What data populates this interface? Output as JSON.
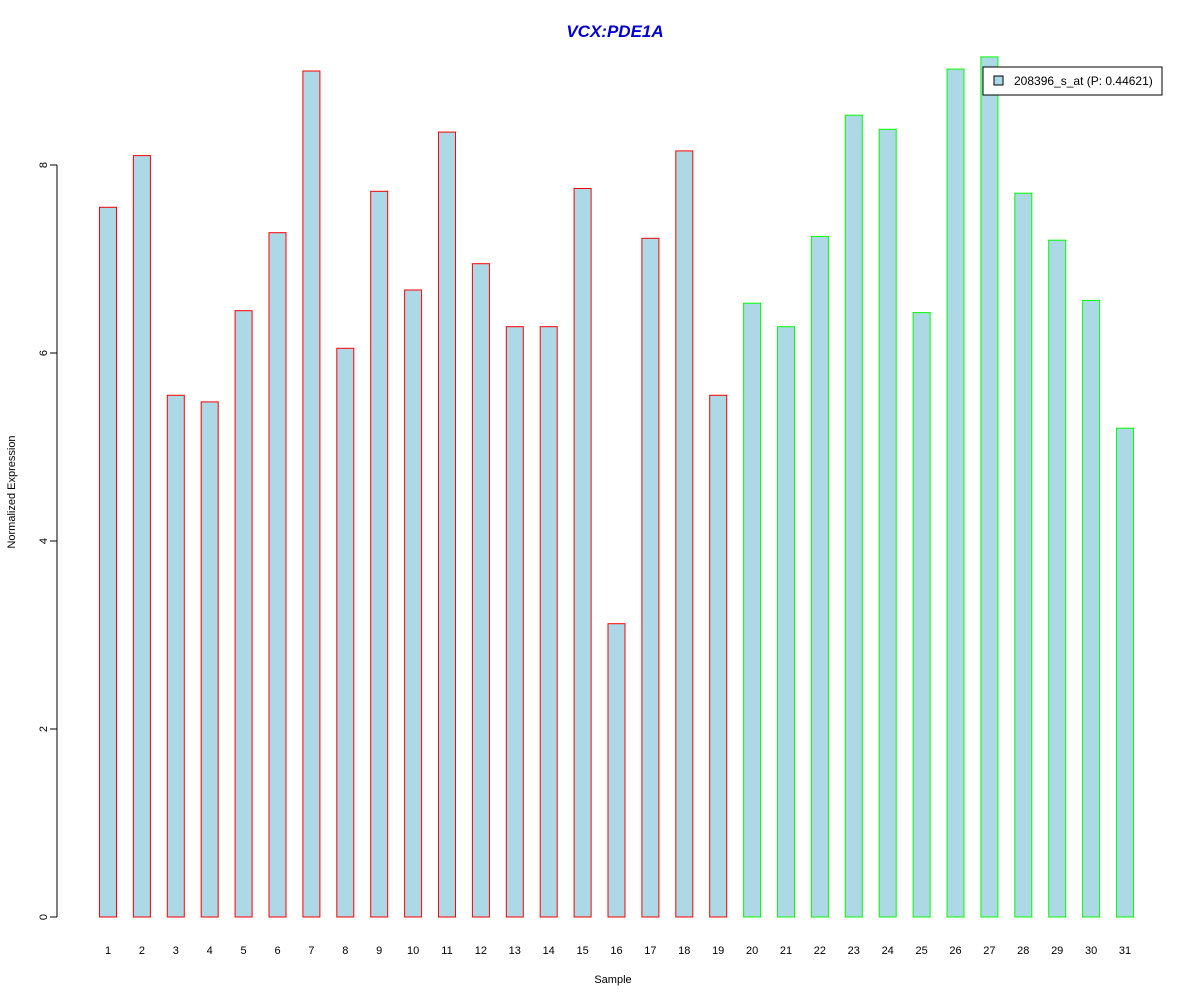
{
  "chart_data": {
    "type": "bar",
    "title": "VCX:PDE1A",
    "xlabel": "Sample",
    "ylabel": "Normalized Expression",
    "categories": [
      "1",
      "2",
      "3",
      "4",
      "5",
      "6",
      "7",
      "8",
      "9",
      "10",
      "11",
      "12",
      "13",
      "14",
      "15",
      "16",
      "17",
      "18",
      "19",
      "20",
      "21",
      "22",
      "23",
      "24",
      "25",
      "26",
      "27",
      "28",
      "29",
      "30",
      "31"
    ],
    "series": [
      {
        "name": "208396_s_at (P: 0.44621)",
        "values": [
          7.55,
          8.1,
          5.55,
          5.48,
          6.45,
          7.28,
          9.0,
          6.05,
          7.72,
          6.67,
          8.35,
          6.95,
          6.28,
          6.28,
          7.75,
          3.12,
          7.22,
          8.15,
          5.55,
          6.53,
          6.28,
          7.24,
          8.53,
          8.38,
          6.43,
          9.02,
          9.15,
          7.7,
          7.2,
          6.56,
          5.2
        ]
      }
    ],
    "ylim": [
      0,
      9.15
    ],
    "yticks": [
      0,
      2,
      4,
      6,
      8
    ],
    "legend_position": "top-right",
    "grid": false,
    "colors": {
      "bar_fill": "#add8e6",
      "group1_border": "#ff0000",
      "group2_border": "#00ff00",
      "title": "#0000cd"
    },
    "group_split_index": 19
  }
}
